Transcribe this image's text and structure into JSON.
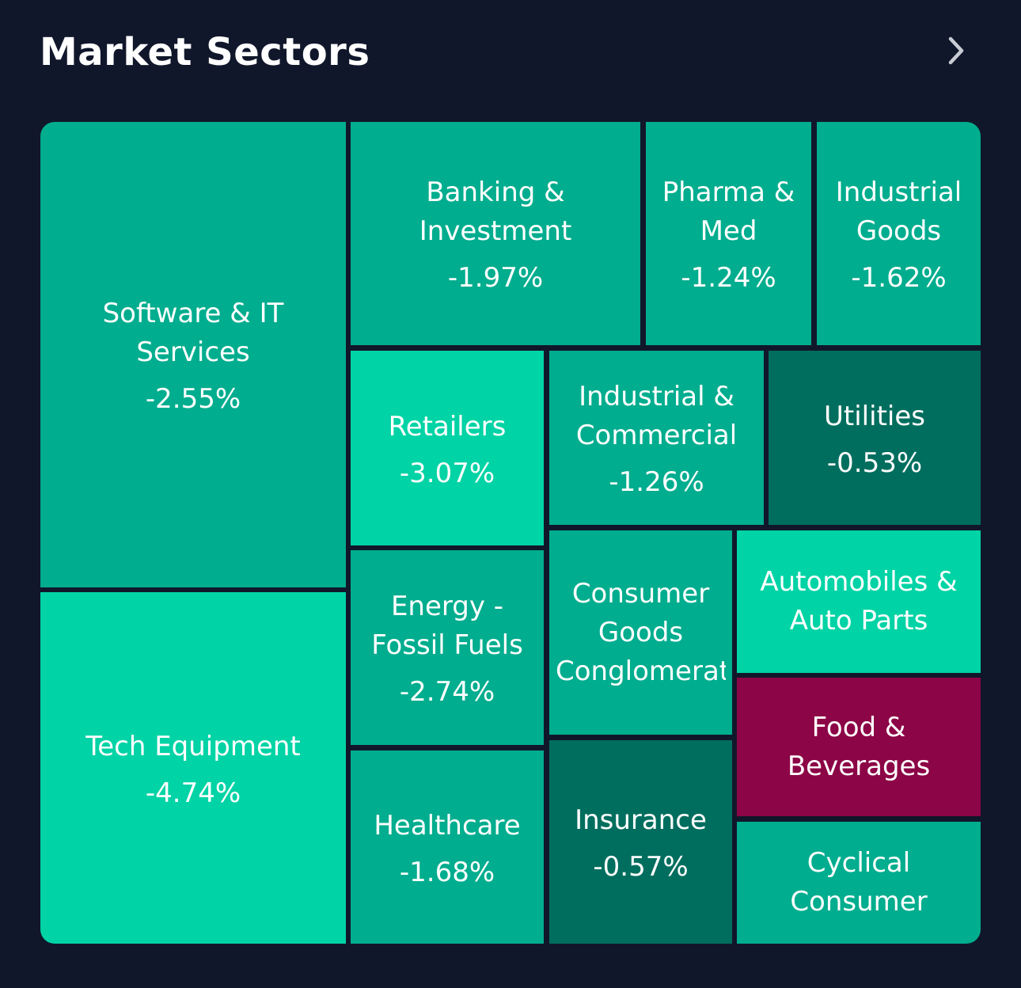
{
  "header": {
    "title": "Market Sectors",
    "chevron_icon": "chevron-right-icon"
  },
  "colors": {
    "background": "#11172b",
    "tile_mid_green": "#00ad8e",
    "tile_bright_green": "#00d3a5",
    "tile_dark_green": "#006e5e",
    "tile_red": "#8c0546",
    "text": "#ffffff"
  },
  "sectors": [
    {
      "name": "Software & IT Services",
      "change": "-2.55%"
    },
    {
      "name": "Tech Equipment",
      "change": "-4.74%"
    },
    {
      "name": "Banking & Investment",
      "change": "-1.97%"
    },
    {
      "name": "Pharma & Med",
      "change": "-1.24%"
    },
    {
      "name": "Industrial Goods",
      "change": "-1.62%"
    },
    {
      "name": "Retailers",
      "change": "-3.07%"
    },
    {
      "name": "Industrial & Commercial",
      "change": "-1.26%"
    },
    {
      "name": "Utilities",
      "change": "-0.53%"
    },
    {
      "name": "Energy - Fossil Fuels",
      "change": "-2.74%"
    },
    {
      "name": "Consumer Goods Conglomerates",
      "change": ""
    },
    {
      "name": "Automobiles & Auto Parts",
      "change": ""
    },
    {
      "name": "Food & Beverages",
      "change": ""
    },
    {
      "name": "Healthcare",
      "change": "-1.68%"
    },
    {
      "name": "Insurance",
      "change": "-0.57%"
    },
    {
      "name": "Cyclical Consumer",
      "change": ""
    }
  ]
}
